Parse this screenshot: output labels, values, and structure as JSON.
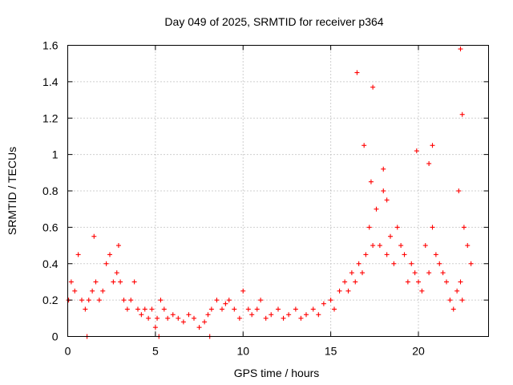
{
  "chart_data": {
    "type": "scatter",
    "title": "Day 049 of 2025, SRMTID for receiver p364",
    "xlabel": "GPS time / hours",
    "ylabel": "SRMTID / TECUs",
    "xlim": [
      0,
      24
    ],
    "ylim": [
      0,
      1.6
    ],
    "xticks": [
      0,
      5,
      10,
      15,
      20
    ],
    "xtick_labels": [
      "0",
      "5",
      "10",
      "15",
      "20"
    ],
    "yticks": [
      0,
      0.2,
      0.4,
      0.6,
      0.8,
      1.0,
      1.2,
      1.4,
      1.6
    ],
    "ytick_labels": [
      "0",
      "0.2",
      "0.4",
      "0.6",
      "0.8",
      "1",
      "1.2",
      "1.4",
      "1.6"
    ],
    "grid": true,
    "marker": "+",
    "marker_color": "#ff0000",
    "series": [
      {
        "name": "SRMTID",
        "x": [
          0.05,
          0.2,
          0.4,
          0.6,
          0.8,
          1.0,
          1.2,
          1.4,
          1.5,
          1.6,
          1.8,
          2.0,
          2.2,
          2.4,
          2.6,
          2.8,
          2.9,
          3.0,
          3.2,
          3.4,
          3.6,
          3.8,
          4.0,
          4.2,
          4.4,
          4.6,
          4.8,
          5.0,
          5.1,
          5.3,
          5.5,
          5.7,
          6.0,
          6.3,
          6.6,
          6.9,
          7.2,
          7.5,
          7.8,
          8.0,
          8.2,
          8.5,
          8.8,
          9.0,
          9.2,
          9.5,
          9.8,
          10.0,
          10.3,
          10.5,
          10.8,
          11.0,
          11.3,
          11.6,
          12.0,
          12.3,
          12.6,
          13.0,
          13.3,
          13.6,
          14.0,
          14.3,
          14.6,
          15.0,
          15.2,
          15.5,
          15.8,
          16.0,
          16.2,
          16.4,
          16.6,
          16.8,
          17.0,
          17.2,
          17.4,
          17.6,
          17.8,
          18.0,
          18.2,
          18.4,
          18.6,
          18.8,
          19.0,
          19.2,
          19.4,
          19.6,
          19.8,
          20.0,
          20.2,
          20.4,
          20.6,
          20.8,
          21.0,
          21.2,
          21.4,
          21.6,
          21.8,
          22.0,
          22.2,
          22.4,
          22.5,
          22.6,
          22.8,
          23.0,
          1.1,
          5.2,
          8.1,
          16.5,
          16.9,
          17.3,
          17.4,
          18.0,
          18.2,
          19.9,
          20.6,
          20.8,
          22.4,
          22.5,
          22.3
        ],
        "y": [
          0.2,
          0.3,
          0.25,
          0.45,
          0.2,
          0.15,
          0.2,
          0.25,
          0.55,
          0.3,
          0.2,
          0.25,
          0.4,
          0.45,
          0.3,
          0.35,
          0.5,
          0.3,
          0.2,
          0.15,
          0.2,
          0.3,
          0.15,
          0.12,
          0.15,
          0.1,
          0.15,
          0.05,
          0.1,
          0.2,
          0.15,
          0.1,
          0.12,
          0.1,
          0.08,
          0.12,
          0.1,
          0.05,
          0.08,
          0.12,
          0.15,
          0.2,
          0.15,
          0.18,
          0.2,
          0.15,
          0.1,
          0.25,
          0.15,
          0.12,
          0.15,
          0.2,
          0.1,
          0.12,
          0.15,
          0.1,
          0.12,
          0.15,
          0.1,
          0.12,
          0.15,
          0.12,
          0.18,
          0.2,
          0.15,
          0.25,
          0.3,
          0.25,
          0.35,
          0.3,
          0.4,
          0.35,
          0.45,
          0.6,
          0.5,
          0.7,
          0.5,
          0.8,
          0.45,
          0.55,
          0.4,
          0.6,
          0.5,
          0.45,
          0.3,
          0.4,
          0.35,
          0.3,
          0.25,
          0.5,
          0.35,
          0.6,
          0.45,
          0.4,
          0.35,
          0.3,
          0.2,
          0.15,
          0.25,
          0.3,
          0.2,
          0.6,
          0.5,
          0.4,
          0.0,
          0.0,
          0.0,
          1.45,
          1.05,
          0.85,
          1.37,
          0.92,
          0.75,
          1.02,
          0.95,
          1.05,
          1.58,
          1.22,
          0.8
        ]
      }
    ]
  }
}
